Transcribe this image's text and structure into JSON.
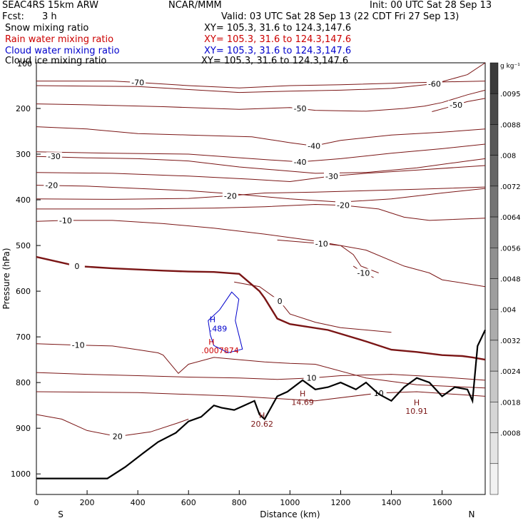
{
  "header": {
    "model": "SEAC4RS 15km ARW",
    "org": "NCAR/MMM",
    "init": "Init: 00 UTC Sat 28 Sep 13",
    "fcst_label": "Fcst:",
    "fcst_value": "3 h",
    "valid": "Valid: 03 UTC Sat 28 Sep 13 (22 CDT Fri 27 Sep 13)",
    "xy": "XY= 105.3, 31.6 to 124.3,147.6"
  },
  "fields": [
    {
      "name": "Snow mixing ratio",
      "color": "#000000"
    },
    {
      "name": "Rain water mixing ratio",
      "color": "#cc0000"
    },
    {
      "name": "Cloud water mixing ratio",
      "color": "#0000cc"
    },
    {
      "name": "Cloud ice mixing ratio",
      "color": "#000000"
    }
  ],
  "colors": {
    "temperature": "#7a1515",
    "freezing": "#7a1515",
    "terrain": "#000000",
    "cloud_water": "#0000cc",
    "rain": "#cc0000"
  },
  "chart_data": {
    "type": "line",
    "xlabel": "Distance (km)",
    "ylabel": "Pressure (hPa)",
    "xlim": [
      0,
      1770
    ],
    "ylim": [
      1045,
      100
    ],
    "x_ticks": [
      0,
      200,
      400,
      600,
      800,
      1000,
      1200,
      1400,
      1600
    ],
    "y_ticks": [
      200,
      300,
      400,
      500,
      600,
      700,
      800,
      900,
      1000
    ],
    "y_tick_top_label": "100",
    "x_end_labels": {
      "left": "S",
      "right": "N"
    },
    "colorbar": {
      "unit": "g kg⁻¹",
      "tick_labels": [
        ".0095",
        ".0088",
        ".008",
        ".0072",
        ".0064",
        ".0056",
        ".0048",
        ".004",
        ".0032",
        ".0024",
        ".0018",
        ".0008"
      ],
      "shades": [
        "#3a3a3a",
        "#4a4a4a",
        "#585858",
        "#666666",
        "#747474",
        "#828282",
        "#909090",
        "#9e9e9e",
        "#acacac",
        "#bababa",
        "#c8c8c8",
        "#d6d6d6",
        "#e4e4e4",
        "#f2f2f2"
      ]
    },
    "isotherms": [
      {
        "value": -70,
        "label": "-70",
        "label_at": [
          400,
          143
        ],
        "points": [
          [
            0,
            140
          ],
          [
            300,
            140
          ],
          [
            400,
            143
          ],
          [
            600,
            150
          ],
          [
            800,
            155
          ],
          [
            1000,
            150
          ],
          [
            1200,
            148
          ],
          [
            1400,
            145
          ],
          [
            1600,
            142
          ],
          [
            1770,
            140
          ]
        ]
      },
      {
        "value": -60,
        "label": "-60",
        "label_at": [
          1570,
          146
        ],
        "points": [
          [
            0,
            150
          ],
          [
            400,
            152
          ],
          [
            800,
            165
          ],
          [
            1000,
            162
          ],
          [
            1200,
            160
          ],
          [
            1400,
            156
          ],
          [
            1570,
            146
          ],
          [
            1700,
            126
          ],
          [
            1770,
            100
          ]
        ]
      },
      {
        "value": -50,
        "label": "-50",
        "label_at": [
          1040,
          200
        ],
        "points": [
          [
            0,
            190
          ],
          [
            200,
            192
          ],
          [
            500,
            196
          ],
          [
            800,
            202
          ],
          [
            1000,
            198
          ],
          [
            1100,
            204
          ],
          [
            1300,
            206
          ],
          [
            1450,
            200
          ],
          [
            1530,
            195
          ],
          [
            1600,
            187
          ],
          [
            1700,
            170
          ],
          [
            1770,
            160
          ]
        ]
      },
      {
        "value": -50,
        "label": "-50",
        "label_at": [
          1655,
          192
        ],
        "points": [
          [
            1560,
            207
          ],
          [
            1620,
            198
          ],
          [
            1655,
            192
          ],
          [
            1700,
            185
          ],
          [
            1770,
            178
          ]
        ]
      },
      {
        "value": -40,
        "label": "-40",
        "label_at": [
          1095,
          282
        ],
        "points": [
          [
            0,
            240
          ],
          [
            200,
            245
          ],
          [
            400,
            255
          ],
          [
            600,
            258
          ],
          [
            850,
            262
          ],
          [
            1000,
            275
          ],
          [
            1095,
            282
          ],
          [
            1200,
            270
          ],
          [
            1400,
            258
          ],
          [
            1600,
            252
          ],
          [
            1770,
            245
          ]
        ]
      },
      {
        "value": -40,
        "label": "-40",
        "label_at": [
          1040,
          317
        ],
        "points": [
          [
            0,
            295
          ],
          [
            300,
            298
          ],
          [
            600,
            300
          ],
          [
            850,
            310
          ],
          [
            1040,
            317
          ],
          [
            1200,
            310
          ],
          [
            1400,
            298
          ],
          [
            1600,
            288
          ],
          [
            1770,
            278
          ]
        ]
      },
      {
        "value": -30,
        "label": "-30",
        "label_at": [
          70,
          305
        ],
        "points": [
          [
            0,
            305
          ],
          [
            200,
            308
          ],
          [
            400,
            310
          ],
          [
            600,
            315
          ],
          [
            800,
            328
          ],
          [
            950,
            335
          ],
          [
            1100,
            342
          ],
          [
            1300,
            340
          ],
          [
            1500,
            330
          ],
          [
            1700,
            315
          ],
          [
            1770,
            310
          ]
        ]
      },
      {
        "value": -30,
        "label": "-30",
        "label_at": [
          1165,
          348
        ],
        "points": [
          [
            0,
            340
          ],
          [
            300,
            342
          ],
          [
            600,
            348
          ],
          [
            850,
            355
          ],
          [
            1000,
            360
          ],
          [
            1165,
            348
          ],
          [
            1300,
            342
          ],
          [
            1500,
            335
          ],
          [
            1770,
            325
          ]
        ]
      },
      {
        "value": -20,
        "label": "-20",
        "label_at": [
          60,
          368
        ],
        "points": [
          [
            0,
            368
          ],
          [
            200,
            370
          ],
          [
            400,
            375
          ],
          [
            600,
            380
          ],
          [
            800,
            388
          ],
          [
            1000,
            398
          ],
          [
            1200,
            405
          ],
          [
            1400,
            398
          ],
          [
            1600,
            385
          ],
          [
            1770,
            375
          ]
        ]
      },
      {
        "value": -20,
        "label": "-20",
        "label_at": [
          765,
          391
        ],
        "points": [
          [
            0,
            398
          ],
          [
            300,
            399
          ],
          [
            600,
            397
          ],
          [
            765,
            391
          ],
          [
            900,
            385
          ],
          [
            1100,
            383
          ],
          [
            1300,
            380
          ],
          [
            1500,
            377
          ],
          [
            1770,
            372
          ]
        ]
      },
      {
        "value": -20,
        "label": "-20",
        "label_at": [
          1210,
          412
        ],
        "points": [
          [
            0,
            420
          ],
          [
            400,
            420
          ],
          [
            700,
            418
          ],
          [
            900,
            415
          ],
          [
            1100,
            410
          ],
          [
            1210,
            412
          ],
          [
            1350,
            420
          ],
          [
            1450,
            438
          ],
          [
            1550,
            445
          ],
          [
            1770,
            440
          ]
        ]
      },
      {
        "value": -10,
        "label": "-10",
        "label_at": [
          115,
          445
        ],
        "points": [
          [
            0,
            447
          ],
          [
            115,
            445
          ],
          [
            300,
            445
          ],
          [
            500,
            452
          ],
          [
            700,
            462
          ],
          [
            900,
            475
          ],
          [
            1100,
            490
          ],
          [
            1300,
            510
          ],
          [
            1450,
            545
          ],
          [
            1550,
            560
          ],
          [
            1600,
            575
          ],
          [
            1770,
            590
          ]
        ]
      },
      {
        "value": -10,
        "label": "-10",
        "label_at": [
          1125,
          496
        ],
        "points": [
          [
            950,
            488
          ],
          [
            1125,
            496
          ],
          [
            1200,
            500
          ],
          [
            1250,
            520
          ],
          [
            1280,
            545
          ],
          [
            1350,
            560
          ]
        ]
      },
      {
        "value": -10,
        "label": "-10",
        "label_at": [
          1290,
          560
        ],
        "points": [
          [
            1250,
            545
          ],
          [
            1290,
            560
          ],
          [
            1330,
            570
          ]
        ]
      },
      {
        "value": 0,
        "label": "0",
        "label_at": [
          160,
          545
        ],
        "freezing": true,
        "points": [
          [
            0,
            525
          ],
          [
            160,
            545
          ],
          [
            300,
            550
          ],
          [
            500,
            555
          ],
          [
            600,
            557
          ],
          [
            700,
            558
          ],
          [
            800,
            562
          ],
          [
            880,
            600
          ],
          [
            900,
            615
          ],
          [
            950,
            660
          ],
          [
            1000,
            672
          ],
          [
            1150,
            685
          ],
          [
            1300,
            710
          ],
          [
            1400,
            728
          ],
          [
            1500,
            733
          ],
          [
            1600,
            740
          ],
          [
            1680,
            742
          ],
          [
            1720,
            745
          ],
          [
            1770,
            750
          ]
        ]
      },
      {
        "value": 0,
        "label": "0",
        "label_at": [
          960,
          622
        ],
        "points": [
          [
            780,
            580
          ],
          [
            880,
            590
          ],
          [
            960,
            622
          ],
          [
            1000,
            650
          ],
          [
            1100,
            668
          ],
          [
            1200,
            680
          ],
          [
            1400,
            690
          ]
        ]
      },
      {
        "value": -10,
        "label": "-10",
        "label_at": [
          165,
          718
        ],
        "points": [
          [
            0,
            715
          ],
          [
            165,
            718
          ],
          [
            300,
            720
          ],
          [
            400,
            728
          ],
          [
            480,
            735
          ],
          [
            500,
            740
          ],
          [
            560,
            780
          ],
          [
            600,
            760
          ],
          [
            700,
            745
          ],
          [
            800,
            750
          ],
          [
            900,
            755
          ],
          [
            1000,
            758
          ],
          [
            1100,
            760
          ],
          [
            1300,
            790
          ],
          [
            1500,
            805
          ],
          [
            1700,
            810
          ],
          [
            1770,
            812
          ]
        ]
      },
      {
        "value": 10,
        "label": "10",
        "label_at": [
          1085,
          790
        ],
        "points": [
          [
            0,
            778
          ],
          [
            200,
            782
          ],
          [
            400,
            785
          ],
          [
            600,
            788
          ],
          [
            800,
            790
          ],
          [
            950,
            793
          ],
          [
            1085,
            790
          ],
          [
            1200,
            785
          ],
          [
            1400,
            782
          ],
          [
            1600,
            788
          ],
          [
            1770,
            795
          ]
        ]
      },
      {
        "value": 10,
        "label": "10",
        "label_at": [
          1350,
          823
        ],
        "points": [
          [
            0,
            820
          ],
          [
            400,
            822
          ],
          [
            800,
            830
          ],
          [
            1100,
            840
          ],
          [
            1350,
            823
          ],
          [
            1500,
            820
          ],
          [
            1770,
            830
          ]
        ]
      },
      {
        "value": 20,
        "label": "20",
        "label_at": [
          320,
          918
        ],
        "points": [
          [
            0,
            870
          ],
          [
            100,
            880
          ],
          [
            200,
            905
          ],
          [
            320,
            918
          ],
          [
            450,
            908
          ],
          [
            560,
            888
          ],
          [
            600,
            880
          ]
        ]
      }
    ],
    "terrain": {
      "points": [
        [
          0,
          1010
        ],
        [
          100,
          1010
        ],
        [
          200,
          1010
        ],
        [
          280,
          1010
        ],
        [
          350,
          985
        ],
        [
          420,
          955
        ],
        [
          480,
          930
        ],
        [
          550,
          910
        ],
        [
          600,
          885
        ],
        [
          650,
          875
        ],
        [
          700,
          850
        ],
        [
          730,
          855
        ],
        [
          780,
          860
        ],
        [
          820,
          850
        ],
        [
          860,
          840
        ],
        [
          880,
          870
        ],
        [
          900,
          880
        ],
        [
          920,
          860
        ],
        [
          950,
          830
        ],
        [
          990,
          820
        ],
        [
          1050,
          795
        ],
        [
          1100,
          815
        ],
        [
          1150,
          810
        ],
        [
          1200,
          800
        ],
        [
          1260,
          815
        ],
        [
          1300,
          800
        ],
        [
          1350,
          825
        ],
        [
          1400,
          840
        ],
        [
          1450,
          810
        ],
        [
          1500,
          790
        ],
        [
          1550,
          800
        ],
        [
          1600,
          830
        ],
        [
          1650,
          810
        ],
        [
          1700,
          815
        ],
        [
          1720,
          840
        ],
        [
          1740,
          720
        ],
        [
          1770,
          685
        ]
      ],
      "max_labels": [
        {
          "text": "H",
          "value": "20.62",
          "at": [
            890,
            878
          ]
        },
        {
          "text": "H",
          "value": "14.69",
          "at": [
            1050,
            830
          ]
        },
        {
          "text": "H",
          "value": "10.91",
          "at": [
            1500,
            850
          ]
        }
      ]
    },
    "cloud_water": {
      "label_h": "H",
      "value": ".489",
      "at": [
        700,
        680
      ]
    },
    "rain_water": {
      "label_h": "H",
      "value": ".0007874",
      "at": [
        690,
        725
      ]
    }
  }
}
